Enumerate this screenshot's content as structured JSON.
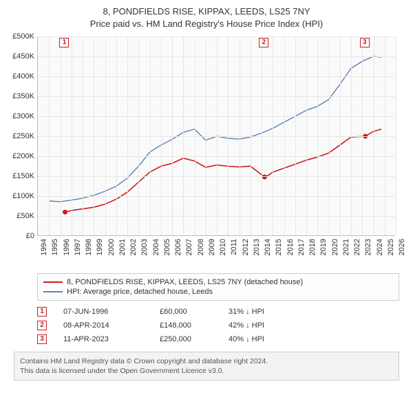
{
  "title": {
    "line1": "8, PONDFIELDS RISE, KIPPAX, LEEDS, LS25 7NY",
    "line2": "Price paid vs. HM Land Registry's House Price Index (HPI)"
  },
  "chart": {
    "type": "line",
    "background_color": "#fafafa",
    "grid_color": "#e6e6e6",
    "axis_color": "#bbbbbb",
    "text_color": "#333333",
    "font_size_ticks": 11,
    "x": {
      "min": 1994,
      "max": 2026,
      "ticks": [
        1994,
        1995,
        1996,
        1997,
        1998,
        1999,
        2000,
        2001,
        2002,
        2003,
        2004,
        2005,
        2006,
        2007,
        2008,
        2009,
        2010,
        2011,
        2012,
        2013,
        2014,
        2015,
        2016,
        2017,
        2018,
        2019,
        2020,
        2021,
        2022,
        2023,
        2024,
        2025,
        2026
      ]
    },
    "y": {
      "min": 0,
      "max": 500000,
      "tick_step": 50000,
      "ticks": [
        0,
        50000,
        100000,
        150000,
        200000,
        250000,
        300000,
        350000,
        400000,
        450000,
        500000
      ],
      "tick_labels": [
        "£0",
        "£50K",
        "£100K",
        "£150K",
        "£200K",
        "£250K",
        "£300K",
        "£350K",
        "£400K",
        "£450K",
        "£500K"
      ]
    },
    "series": [
      {
        "name": "price_paid",
        "label": "8, PONDFIELDS RISE, KIPPAX, LEEDS, LS25 7NY (detached house)",
        "color": "#cc1b1b",
        "line_width": 1.6,
        "points": [
          [
            1996.43,
            60000
          ],
          [
            1997,
            64000
          ],
          [
            1998,
            68000
          ],
          [
            1999,
            72000
          ],
          [
            2000,
            80000
          ],
          [
            2001,
            92000
          ],
          [
            2002,
            110000
          ],
          [
            2003,
            135000
          ],
          [
            2004,
            160000
          ],
          [
            2005,
            175000
          ],
          [
            2006,
            182000
          ],
          [
            2007,
            195000
          ],
          [
            2008,
            188000
          ],
          [
            2009,
            172000
          ],
          [
            2010,
            178000
          ],
          [
            2011,
            175000
          ],
          [
            2012,
            173000
          ],
          [
            2013,
            175000
          ],
          [
            2014.27,
            148000
          ],
          [
            2014.6,
            152000
          ],
          [
            2015,
            160000
          ],
          [
            2016,
            170000
          ],
          [
            2017,
            180000
          ],
          [
            2018,
            190000
          ],
          [
            2019,
            198000
          ],
          [
            2020,
            208000
          ],
          [
            2021,
            228000
          ],
          [
            2022,
            248000
          ],
          [
            2023.28,
            250000
          ],
          [
            2024,
            262000
          ],
          [
            2024.7,
            268000
          ]
        ],
        "sale_markers": [
          {
            "idx": 1,
            "x": 1996.43,
            "y": 60000
          },
          {
            "idx": 2,
            "x": 2014.27,
            "y": 148000
          },
          {
            "idx": 3,
            "x": 2023.28,
            "y": 250000
          }
        ],
        "marker_radius": 3.5,
        "marker_fill": "#cc1b1b"
      },
      {
        "name": "hpi",
        "label": "HPI: Average price, detached house, Leeds",
        "color": "#5b7fb5",
        "line_width": 1.4,
        "points": [
          [
            1995,
            88000
          ],
          [
            1996,
            86000
          ],
          [
            1997,
            90000
          ],
          [
            1998,
            95000
          ],
          [
            1999,
            102000
          ],
          [
            2000,
            112000
          ],
          [
            2001,
            125000
          ],
          [
            2002,
            145000
          ],
          [
            2003,
            175000
          ],
          [
            2004,
            210000
          ],
          [
            2005,
            228000
          ],
          [
            2006,
            242000
          ],
          [
            2007,
            260000
          ],
          [
            2008,
            268000
          ],
          [
            2009,
            240000
          ],
          [
            2010,
            250000
          ],
          [
            2011,
            245000
          ],
          [
            2012,
            243000
          ],
          [
            2013,
            248000
          ],
          [
            2014,
            258000
          ],
          [
            2015,
            270000
          ],
          [
            2016,
            285000
          ],
          [
            2017,
            300000
          ],
          [
            2018,
            315000
          ],
          [
            2019,
            325000
          ],
          [
            2020,
            342000
          ],
          [
            2021,
            380000
          ],
          [
            2022,
            420000
          ],
          [
            2023,
            438000
          ],
          [
            2024,
            450000
          ],
          [
            2024.7,
            448000
          ]
        ]
      }
    ],
    "top_markers": [
      {
        "idx": "1",
        "x": 1996.43,
        "color": "#cc1b1b"
      },
      {
        "idx": "2",
        "x": 2014.27,
        "color": "#cc1b1b"
      },
      {
        "idx": "3",
        "x": 2023.28,
        "color": "#cc1b1b"
      }
    ]
  },
  "legend": {
    "rows": [
      {
        "color": "#cc1b1b",
        "label": "8, PONDFIELDS RISE, KIPPAX, LEEDS, LS25 7NY (detached house)"
      },
      {
        "color": "#5b7fb5",
        "label": "HPI: Average price, detached house, Leeds"
      }
    ]
  },
  "sales": {
    "box_color": "#cc1b1b",
    "arrow": "↓",
    "rows": [
      {
        "idx": "1",
        "date": "07-JUN-1996",
        "price": "£60,000",
        "pct": "31% ↓ HPI"
      },
      {
        "idx": "2",
        "date": "08-APR-2014",
        "price": "£148,000",
        "pct": "42% ↓ HPI"
      },
      {
        "idx": "3",
        "date": "11-APR-2023",
        "price": "£250,000",
        "pct": "40% ↓ HPI"
      }
    ]
  },
  "footnote": {
    "line1": "Contains HM Land Registry data © Crown copyright and database right 2024.",
    "line2": "This data is licensed under the Open Government Licence v3.0."
  }
}
